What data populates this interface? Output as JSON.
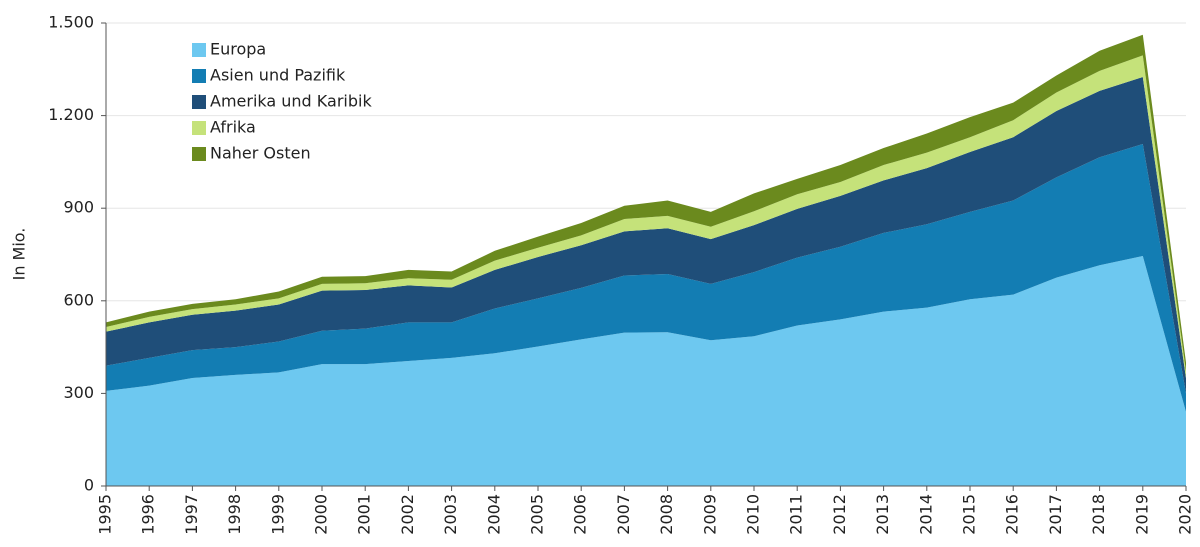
{
  "chart_data": {
    "type": "stacked_area",
    "y_label": "In Mio.",
    "categories": [
      "1995",
      "1996",
      "1997",
      "1998",
      "1999",
      "2000",
      "2001",
      "2002",
      "2003",
      "2004",
      "2005",
      "2006",
      "2007",
      "2008",
      "2009",
      "2010",
      "2011",
      "2012",
      "2013",
      "2014",
      "2015",
      "2016",
      "2017",
      "2018",
      "2019",
      "2020"
    ],
    "series": [
      {
        "name": "Europa",
        "color": "#6dc8f0",
        "values": [
          308,
          325,
          350,
          360,
          368,
          395,
          395,
          405,
          415,
          430,
          452,
          475,
          497,
          498,
          472,
          485,
          520,
          540,
          565,
          578,
          605,
          620,
          675,
          715,
          745,
          240
        ]
      },
      {
        "name": "Asien und Pazifik",
        "color": "#137db3",
        "values": [
          82,
          90,
          90,
          90,
          100,
          108,
          115,
          125,
          115,
          145,
          156,
          167,
          185,
          189,
          183,
          208,
          220,
          235,
          255,
          270,
          283,
          305,
          325,
          350,
          363,
          60
        ]
      },
      {
        "name": "Amerika und Karibik",
        "color": "#1f4e79",
        "values": [
          110,
          115,
          115,
          118,
          120,
          130,
          125,
          120,
          113,
          125,
          134,
          138,
          143,
          148,
          145,
          152,
          158,
          165,
          170,
          182,
          194,
          205,
          215,
          215,
          217,
          50
        ]
      },
      {
        "name": "Afrika",
        "color": "#c5e27a",
        "values": [
          15,
          18,
          18,
          20,
          20,
          22,
          22,
          23,
          25,
          30,
          30,
          32,
          40,
          40,
          40,
          45,
          47,
          45,
          50,
          50,
          48,
          55,
          60,
          65,
          70,
          20
        ]
      },
      {
        "name": "Naher Osten",
        "color": "#6b8a1e",
        "values": [
          15,
          17,
          17,
          17,
          22,
          23,
          23,
          27,
          27,
          32,
          36,
          40,
          43,
          50,
          48,
          58,
          50,
          55,
          55,
          62,
          65,
          57,
          55,
          65,
          67,
          30
        ]
      }
    ],
    "ylim": [
      0,
      1500
    ],
    "yticks": [
      0,
      300,
      600,
      900,
      {
        "value": 1200,
        "label": "1.200"
      },
      {
        "value": 1500,
        "label": "1.500"
      }
    ],
    "grid": true,
    "legend": "upper left"
  }
}
